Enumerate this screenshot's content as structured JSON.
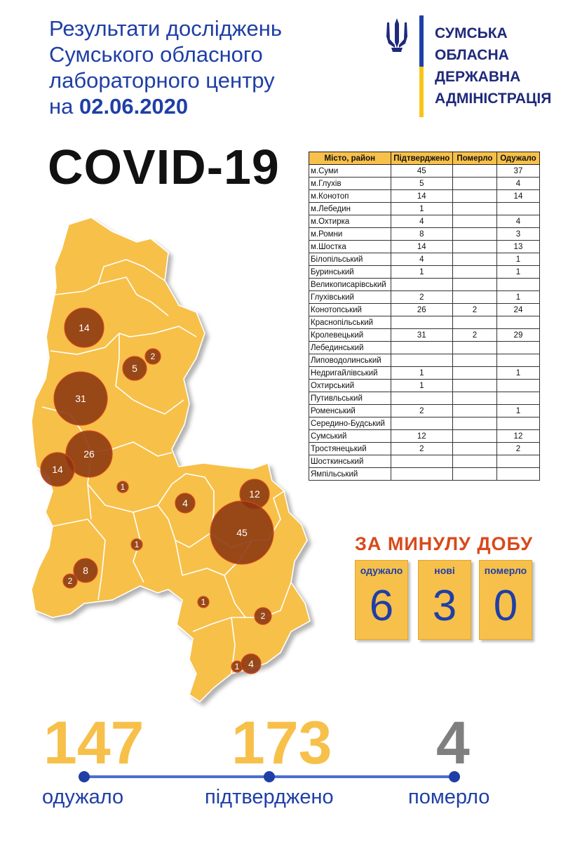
{
  "header": {
    "title_lines": [
      "Результати досліджень",
      "Сумського обласного",
      "лабораторного центру"
    ],
    "date_prefix": "на",
    "date": "02.06.2020",
    "disease": "COVID-19"
  },
  "logo": {
    "org_lines": [
      "СУМСЬКА",
      "ОБЛАСНА",
      "ДЕРЖАВНА",
      "АДМІНІСТРАЦІЯ"
    ],
    "emblem": "trident-icon"
  },
  "table": {
    "headers": [
      "Місто, район",
      "Підтверджено",
      "Померло",
      "Одужало"
    ],
    "rows": [
      [
        "м.Суми",
        "45",
        "",
        "37"
      ],
      [
        "м.Глухів",
        "5",
        "",
        "4"
      ],
      [
        "м.Конотоп",
        "14",
        "",
        "14"
      ],
      [
        "м.Лебедин",
        "1",
        "",
        ""
      ],
      [
        "м.Охтирка",
        "4",
        "",
        "4"
      ],
      [
        "м.Ромни",
        "8",
        "",
        "3"
      ],
      [
        "м.Шостка",
        "14",
        "",
        "13"
      ],
      [
        "Білопільський",
        "4",
        "",
        "1"
      ],
      [
        "Буринський",
        "1",
        "",
        "1"
      ],
      [
        "Великописарівський",
        "",
        "",
        ""
      ],
      [
        "Глухівський",
        "2",
        "",
        "1"
      ],
      [
        "Конотопський",
        "26",
        "2",
        "24"
      ],
      [
        "Краснопільський",
        "",
        "",
        ""
      ],
      [
        "Кролевецький",
        "31",
        "2",
        "29"
      ],
      [
        "Лебединський",
        "",
        "",
        ""
      ],
      [
        "Липоводолинський",
        "",
        "",
        ""
      ],
      [
        "Недригайлівський",
        "1",
        "",
        "1"
      ],
      [
        "Охтирський",
        "1",
        "",
        ""
      ],
      [
        "Путивльський",
        "",
        "",
        ""
      ],
      [
        "Роменський",
        "2",
        "",
        "1"
      ],
      [
        "Середино-Будський",
        "",
        "",
        ""
      ],
      [
        "Сумський",
        "12",
        "",
        "12"
      ],
      [
        "Тростянецький",
        "2",
        "",
        "2"
      ],
      [
        "Шосткинський",
        "",
        "",
        ""
      ],
      [
        "Ямпільський",
        "",
        "",
        ""
      ]
    ]
  },
  "map": {
    "markers": [
      "14",
      "2",
      "5",
      "31",
      "26",
      "14",
      "1",
      "4",
      "12",
      "45",
      "1",
      "8",
      "2",
      "1",
      "2",
      "1",
      "4"
    ]
  },
  "daily": {
    "title": "ЗА МИНУЛУ ДОБУ",
    "cards": [
      {
        "label": "одужало",
        "value": "6"
      },
      {
        "label": "нові",
        "value": "3"
      },
      {
        "label": "померло",
        "value": "0"
      }
    ]
  },
  "totals": [
    {
      "value": "147",
      "label": "одужало"
    },
    {
      "value": "173",
      "label": "підтверджено"
    },
    {
      "value": "4",
      "label": "померло"
    }
  ],
  "colors": {
    "title_blue": "#1f3fa6",
    "map_fill": "#f7c04a",
    "marker": "#8b3510",
    "daily_title": "#d84a1b",
    "total_gray": "#7f7f7f"
  }
}
